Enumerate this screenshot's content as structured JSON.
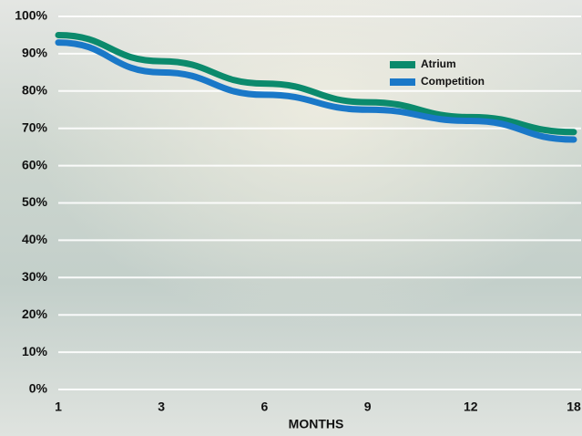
{
  "chart_data": {
    "type": "line",
    "x_label": "MONTHS",
    "categories": [
      "1",
      "3",
      "6",
      "9",
      "12",
      "18"
    ],
    "series": [
      {
        "name": "Atrium",
        "color": "#0b8a6c",
        "values": [
          95,
          88,
          82,
          77,
          73,
          69
        ]
      },
      {
        "name": "Competition",
        "color": "#1a78c8",
        "values": [
          93,
          85,
          79,
          75,
          72,
          67
        ]
      }
    ],
    "ylim": [
      0,
      100
    ],
    "yticks": [
      {
        "value": 0,
        "label": "0%"
      },
      {
        "value": 10,
        "label": "10%"
      },
      {
        "value": 20,
        "label": "20%"
      },
      {
        "value": 30,
        "label": "30%"
      },
      {
        "value": 40,
        "label": "40%"
      },
      {
        "value": 50,
        "label": "50%"
      },
      {
        "value": 60,
        "label": "60%"
      },
      {
        "value": 70,
        "label": "70%"
      },
      {
        "value": 80,
        "label": "80%"
      },
      {
        "value": 90,
        "label": "90%"
      },
      {
        "value": 100,
        "label": "100%"
      }
    ],
    "grid": true,
    "legend": "upper right"
  }
}
